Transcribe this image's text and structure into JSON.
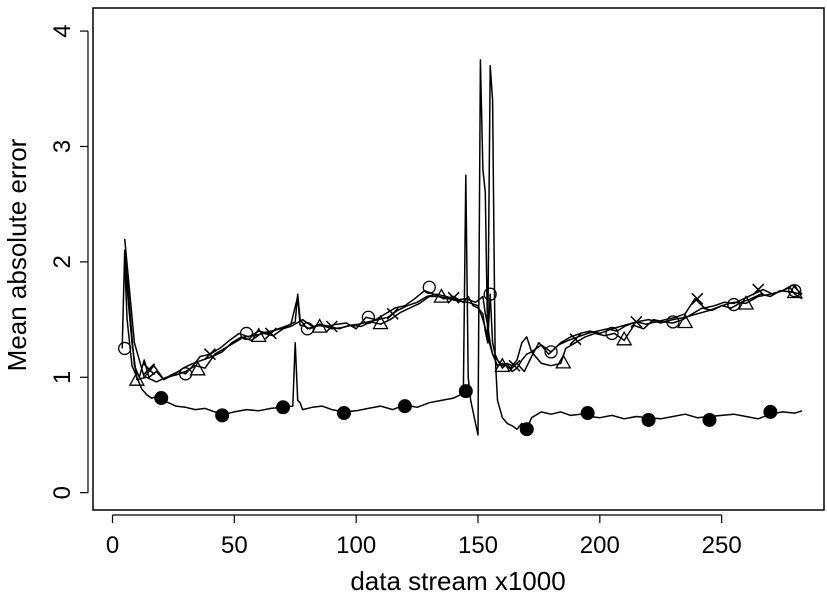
{
  "chart_data": {
    "type": "line",
    "xlabel": "data stream x1000",
    "ylabel": "Mean absolute error",
    "xlim": [
      -8,
      292
    ],
    "ylim": [
      -0.15,
      4.2
    ],
    "xticks": [
      0,
      50,
      100,
      150,
      200,
      250
    ],
    "yticks": [
      0,
      1,
      2,
      3,
      4
    ],
    "grid": false,
    "series": [
      {
        "marker": "circle-open",
        "x": [
          4,
          5,
          7,
          9,
          11,
          13,
          15,
          18,
          21,
          24,
          27,
          30,
          33,
          36,
          40,
          44,
          48,
          52,
          56,
          60,
          64,
          68,
          72,
          75,
          76,
          77,
          80,
          84,
          88,
          92,
          96,
          100,
          104,
          108,
          112,
          116,
          120,
          124,
          128,
          132,
          136,
          140,
          144,
          146,
          148,
          150,
          152,
          153,
          154,
          155,
          156,
          157,
          158,
          160,
          162,
          164,
          166,
          168,
          170,
          172,
          174,
          176,
          180,
          184,
          188,
          192,
          196,
          200,
          205,
          210,
          215,
          220,
          225,
          230,
          235,
          240,
          245,
          250,
          255,
          260,
          265,
          270,
          275,
          278,
          280,
          283
        ],
        "y": [
          1.25,
          2.1,
          1.6,
          1.1,
          1.0,
          1.15,
          1.0,
          1.05,
          0.98,
          1.02,
          1.05,
          1.03,
          1.1,
          1.18,
          1.2,
          1.25,
          1.32,
          1.38,
          1.35,
          1.4,
          1.38,
          1.42,
          1.45,
          1.48,
          1.72,
          1.5,
          1.42,
          1.45,
          1.44,
          1.46,
          1.47,
          1.42,
          1.52,
          1.5,
          1.55,
          1.6,
          1.62,
          1.68,
          1.75,
          1.72,
          1.68,
          1.7,
          1.65,
          1.7,
          1.62,
          1.6,
          1.55,
          1.4,
          1.3,
          1.72,
          1.3,
          1.2,
          1.15,
          1.1,
          1.12,
          1.05,
          1.08,
          1.15,
          1.2,
          1.22,
          1.25,
          1.28,
          1.22,
          1.3,
          1.35,
          1.38,
          1.4,
          1.38,
          1.42,
          1.45,
          1.48,
          1.5,
          1.47,
          1.5,
          1.52,
          1.55,
          1.58,
          1.62,
          1.65,
          1.64,
          1.7,
          1.72,
          1.75,
          1.78,
          1.72,
          1.68
        ],
        "marker_x": [
          5,
          30,
          55,
          80,
          105,
          130,
          155,
          180,
          205,
          230,
          255,
          280
        ],
        "marker_y": [
          1.25,
          1.03,
          1.38,
          1.42,
          1.52,
          1.78,
          1.72,
          1.22,
          1.38,
          1.48,
          1.63,
          1.75
        ]
      },
      {
        "marker": "triangle-open",
        "x": [
          5,
          8,
          10,
          14,
          18,
          22,
          26,
          30,
          34,
          38,
          42,
          46,
          50,
          54,
          58,
          62,
          66,
          70,
          74,
          78,
          82,
          86,
          90,
          94,
          98,
          102,
          106,
          110,
          114,
          118,
          122,
          126,
          130,
          134,
          138,
          142,
          146,
          150,
          152,
          154,
          156,
          158,
          160,
          162,
          164,
          166,
          168,
          170,
          172,
          176,
          180,
          184,
          186,
          190,
          194,
          198,
          202,
          206,
          210,
          214,
          218,
          222,
          226,
          230,
          234,
          238,
          242,
          246,
          250,
          254,
          258,
          262,
          266,
          270,
          274,
          278,
          283
        ],
        "y": [
          2.0,
          1.3,
          0.98,
          1.0,
          0.96,
          1.0,
          1.02,
          1.05,
          1.1,
          1.08,
          1.2,
          1.25,
          1.3,
          1.35,
          1.36,
          1.38,
          1.36,
          1.42,
          1.45,
          1.5,
          1.44,
          1.45,
          1.42,
          1.43,
          1.45,
          1.44,
          1.48,
          1.46,
          1.5,
          1.56,
          1.6,
          1.64,
          1.7,
          1.7,
          1.68,
          1.66,
          1.65,
          1.62,
          1.5,
          1.35,
          1.2,
          1.15,
          1.08,
          1.12,
          1.1,
          1.15,
          1.3,
          1.35,
          1.22,
          1.12,
          1.1,
          1.12,
          1.25,
          1.3,
          1.35,
          1.38,
          1.36,
          1.38,
          1.32,
          1.45,
          1.42,
          1.5,
          1.48,
          1.47,
          1.5,
          1.55,
          1.6,
          1.58,
          1.62,
          1.6,
          1.65,
          1.68,
          1.72,
          1.7,
          1.75,
          1.74,
          1.72
        ],
        "marker_x": [
          10,
          35,
          60,
          85,
          110,
          135,
          160,
          185,
          210,
          235,
          260,
          280
        ],
        "marker_y": [
          0.98,
          1.07,
          1.36,
          1.44,
          1.47,
          1.7,
          1.1,
          1.13,
          1.33,
          1.48,
          1.64,
          1.74
        ]
      },
      {
        "marker": "x",
        "x": [
          5,
          9,
          13,
          15,
          17,
          21,
          25,
          29,
          33,
          37,
          41,
          45,
          49,
          53,
          57,
          61,
          65,
          69,
          73,
          76,
          77,
          78,
          81,
          85,
          89,
          93,
          97,
          101,
          105,
          109,
          113,
          117,
          121,
          125,
          129,
          133,
          137,
          141,
          145,
          149,
          152,
          153,
          154,
          155,
          156,
          157,
          158,
          160,
          163,
          166,
          169,
          172,
          175,
          179,
          183,
          187,
          191,
          195,
          199,
          203,
          207,
          211,
          215,
          219,
          223,
          227,
          231,
          235,
          239,
          243,
          247,
          251,
          255,
          259,
          263,
          267,
          271,
          275,
          279,
          283
        ],
        "y": [
          2.2,
          1.3,
          1.0,
          1.05,
          1.1,
          0.98,
          1.02,
          1.08,
          1.12,
          1.15,
          1.18,
          1.22,
          1.3,
          1.35,
          1.32,
          1.38,
          1.4,
          1.42,
          1.44,
          1.7,
          1.45,
          1.45,
          1.42,
          1.46,
          1.44,
          1.42,
          1.45,
          1.46,
          1.48,
          1.5,
          1.52,
          1.58,
          1.62,
          1.65,
          1.7,
          1.72,
          1.7,
          1.67,
          1.68,
          1.65,
          1.7,
          1.55,
          1.45,
          1.3,
          1.2,
          1.15,
          1.1,
          1.12,
          1.08,
          1.12,
          1.05,
          1.18,
          1.3,
          1.2,
          1.28,
          1.32,
          1.35,
          1.38,
          1.4,
          1.42,
          1.4,
          1.45,
          1.48,
          1.46,
          1.48,
          1.5,
          1.52,
          1.55,
          1.68,
          1.6,
          1.62,
          1.65,
          1.64,
          1.68,
          1.72,
          1.76,
          1.72,
          1.75,
          1.8,
          1.72
        ],
        "marker_x": [
          15,
          40,
          65,
          90,
          115,
          140,
          165,
          190,
          215,
          240,
          265
        ],
        "marker_y": [
          1.07,
          1.2,
          1.38,
          1.44,
          1.55,
          1.69,
          1.1,
          1.33,
          1.48,
          1.68,
          1.76
        ]
      },
      {
        "marker": "circle-filled",
        "x": [
          5,
          6,
          8,
          10,
          12,
          14,
          16,
          18,
          20,
          23,
          26,
          30,
          34,
          38,
          42,
          46,
          50,
          55,
          60,
          65,
          70,
          74,
          75,
          76,
          77,
          78,
          82,
          86,
          90,
          95,
          100,
          105,
          110,
          115,
          120,
          125,
          130,
          135,
          140,
          143,
          144,
          145,
          146,
          147,
          148,
          150,
          151,
          152,
          153,
          154,
          155,
          156,
          157,
          158,
          160,
          162,
          164,
          166,
          168,
          170,
          172,
          176,
          180,
          184,
          188,
          192,
          196,
          200,
          205,
          210,
          215,
          220,
          225,
          230,
          235,
          240,
          245,
          250,
          255,
          260,
          265,
          270,
          275,
          280,
          283
        ],
        "y": [
          2.0,
          1.5,
          1.1,
          1.0,
          0.9,
          0.85,
          0.82,
          0.83,
          0.8,
          0.78,
          0.75,
          0.74,
          0.72,
          0.73,
          0.7,
          0.68,
          0.7,
          0.72,
          0.71,
          0.73,
          0.74,
          0.75,
          1.3,
          0.8,
          0.78,
          0.72,
          0.74,
          0.75,
          0.72,
          0.7,
          0.71,
          0.73,
          0.75,
          0.72,
          0.76,
          0.74,
          0.78,
          0.8,
          0.82,
          0.85,
          0.9,
          2.75,
          1.0,
          0.8,
          0.7,
          0.5,
          3.75,
          2.8,
          2.6,
          1.3,
          3.7,
          3.4,
          1.2,
          0.8,
          0.65,
          0.6,
          0.58,
          0.55,
          0.6,
          0.55,
          0.65,
          0.7,
          0.68,
          0.7,
          0.67,
          0.68,
          0.66,
          0.65,
          0.67,
          0.64,
          0.66,
          0.65,
          0.64,
          0.66,
          0.68,
          0.65,
          0.66,
          0.67,
          0.68,
          0.66,
          0.64,
          0.68,
          0.7,
          0.69,
          0.71
        ],
        "marker_x": [
          20,
          45,
          70,
          95,
          120,
          145,
          170,
          195,
          220,
          245,
          270
        ],
        "marker_y": [
          0.82,
          0.67,
          0.74,
          0.69,
          0.75,
          0.88,
          0.55,
          0.69,
          0.63,
          0.63,
          0.7
        ]
      }
    ]
  }
}
